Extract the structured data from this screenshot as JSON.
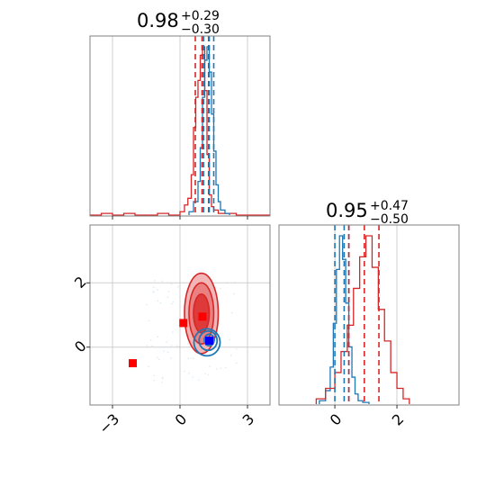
{
  "colors": {
    "red": "#d62728",
    "blue": "#1f77b4",
    "marker_red": "#ff0000",
    "marker_blue": "#0000ff",
    "grid": "#cfcfcf",
    "frame": "#808080"
  },
  "chart_data": {
    "type": "corner",
    "grid": true,
    "panels": [
      {
        "id": "hist-param-1",
        "type": "histogram",
        "title": {
          "value": "0.98",
          "plus": "+0.29",
          "minus": "−0.30"
        },
        "xlim": [
          -4,
          4
        ],
        "ticks": [
          -3,
          0,
          3
        ],
        "series": [
          {
            "name": "red",
            "color": "#d62728",
            "bins": [
              -4,
              -3.5,
              -3,
              -2.5,
              -2,
              -1.5,
              -1,
              -0.5,
              0,
              0.2,
              0.35,
              0.5,
              0.6,
              0.7,
              0.8,
              0.9,
              1.0,
              1.1,
              1.2,
              1.3,
              1.4,
              1.5,
              1.7,
              2.0,
              2.5,
              3.0,
              4.0
            ],
            "counts": [
              0,
              1,
              0,
              1,
              0,
              0,
              1,
              0,
              2,
              6,
              10,
              24,
              52,
              70,
              80,
              95,
              100,
              74,
              36,
              12,
              5,
              3,
              1,
              1,
              0,
              0
            ]
          },
          {
            "name": "blue",
            "color": "#1f77b4",
            "bins": [
              0.4,
              0.6,
              0.8,
              0.9,
              1.0,
              1.1,
              1.2,
              1.3,
              1.4,
              1.5,
              1.6,
              1.7,
              1.8,
              2.0,
              2.2
            ],
            "counts": [
              2,
              8,
              20,
              40,
              70,
              92,
              100,
              85,
              60,
              38,
              18,
              8,
              3,
              1
            ]
          }
        ],
        "quantiles": [
          {
            "series": "red",
            "values": [
              0.68,
              0.98,
              1.27
            ]
          },
          {
            "series": "blue",
            "values": [
              1.05,
              1.3,
              1.5
            ]
          }
        ]
      },
      {
        "id": "hist-param-2",
        "type": "histogram",
        "title": {
          "value": "0.95",
          "plus": "+0.47",
          "minus": "−0.50"
        },
        "xlim": [
          -1.8,
          4
        ],
        "ticks": [
          0,
          2
        ],
        "series": [
          {
            "name": "blue",
            "color": "#1f77b4",
            "bins": [
              -0.5,
              -0.3,
              -0.15,
              -0.05,
              0.05,
              0.15,
              0.25,
              0.35,
              0.45,
              0.55,
              0.65,
              0.75,
              0.9,
              1.1
            ],
            "counts": [
              2,
              8,
              22,
              48,
              80,
              100,
              86,
              60,
              34,
              16,
              6,
              2,
              1
            ]
          },
          {
            "name": "red",
            "color": "#d62728",
            "bins": [
              -0.6,
              -0.3,
              0,
              0.2,
              0.4,
              0.6,
              0.8,
              1.0,
              1.2,
              1.4,
              1.6,
              1.8,
              2.0,
              2.2,
              2.4
            ],
            "counts": [
              1,
              3,
              6,
              10,
              15,
              22,
              28,
              32,
              26,
              18,
              12,
              6,
              3,
              1
            ]
          }
        ],
        "quantiles": [
          {
            "series": "blue",
            "values": [
              0.0,
              0.3,
              0.45
            ]
          },
          {
            "series": "red",
            "values": [
              0.45,
              0.95,
              1.42
            ]
          }
        ]
      },
      {
        "id": "scatter-param-1-vs-2",
        "type": "scatter-contour",
        "xlim": [
          -4,
          4
        ],
        "ylim": [
          -1.8,
          3.8
        ],
        "xticks": [
          -3,
          0,
          3
        ],
        "yticks": [
          0,
          2
        ],
        "red_contours": [
          {
            "cx": 0.95,
            "cy": 1.05,
            "rx": 0.75,
            "ry": 1.25,
            "fill": "#f3b6b6"
          },
          {
            "cx": 0.95,
            "cy": 1.05,
            "rx": 0.55,
            "ry": 0.95,
            "fill": "#ea8080"
          },
          {
            "cx": 0.95,
            "cy": 1.05,
            "rx": 0.35,
            "ry": 0.6,
            "fill": "#de3a3a"
          }
        ],
        "blue_contours": [
          {
            "cx": 1.2,
            "cy": 0.15,
            "rx": 0.58,
            "ry": 0.42
          },
          {
            "cx": 1.25,
            "cy": 0.2,
            "rx": 0.4,
            "ry": 0.3
          },
          {
            "cx": 1.3,
            "cy": 0.22,
            "rx": 0.22,
            "ry": 0.18
          }
        ],
        "markers": [
          {
            "x": 0.15,
            "y": 0.75,
            "color": "#ff0000"
          },
          {
            "x": 1.0,
            "y": 0.95,
            "color": "#ff0000"
          },
          {
            "x": -2.1,
            "y": -0.5,
            "color": "#ff0000"
          },
          {
            "x": 1.3,
            "y": 0.2,
            "color": "#0000ff"
          }
        ]
      }
    ]
  }
}
